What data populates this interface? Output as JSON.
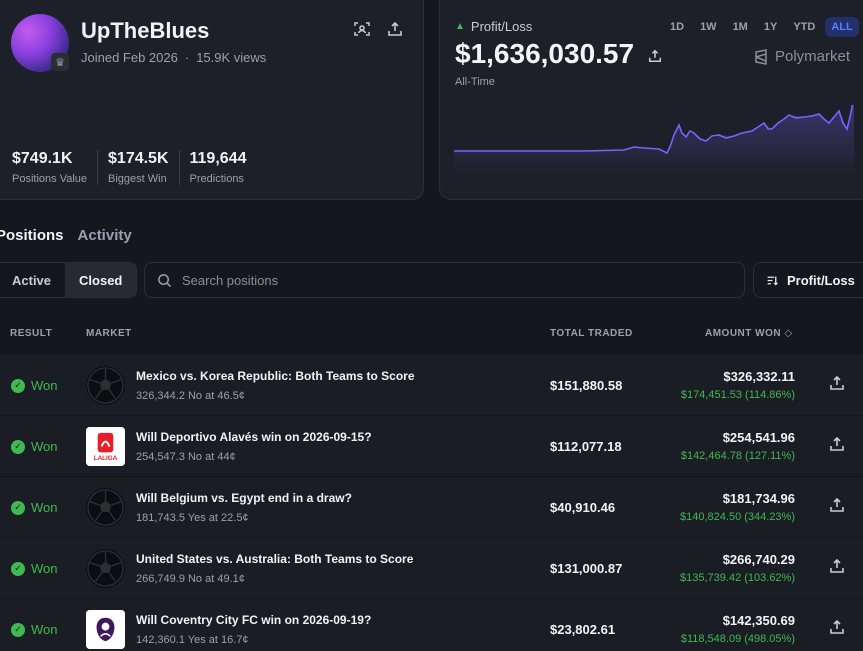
{
  "profile": {
    "username": "UpTheBlues",
    "joined": "Joined Feb 2026",
    "views": "15.9K views",
    "stats": [
      {
        "value": "$749.1K",
        "label": "Positions Value"
      },
      {
        "value": "$174.5K",
        "label": "Biggest Win"
      },
      {
        "value": "119,644",
        "label": "Predictions"
      }
    ]
  },
  "pnl": {
    "label": "Profit/Loss",
    "value": "$1,636,030.57",
    "period": "All-Time",
    "ranges": [
      "1D",
      "1W",
      "1M",
      "1Y",
      "YTD",
      "ALL"
    ],
    "active_range": "ALL",
    "brand": "Polymarket",
    "line_color": "#7b61ff"
  },
  "tabs": [
    "Positions",
    "Activity"
  ],
  "filters": {
    "active": "Active",
    "closed": "Closed"
  },
  "search": {
    "placeholder": "Search positions",
    "value": ""
  },
  "sort": {
    "label": "Profit/Loss"
  },
  "columns": {
    "result": "RESULT",
    "market": "MARKET",
    "total_traded": "TOTAL TRADED",
    "amount_won": "AMOUNT WON"
  },
  "rows": [
    {
      "result": "Won",
      "thumb": "soccer-ball",
      "title": "Mexico vs. Korea Republic: Both Teams to Score",
      "sub": "326,344.2 No at 46.5¢",
      "traded": "$151,880.58",
      "won": "$326,332.11",
      "gain": "$174,451.53 (114.86%)"
    },
    {
      "result": "Won",
      "thumb": "laliga-logo",
      "title": "Will Deportivo Alavés win on 2026-09-15?",
      "sub": "254,547.3 No at 44¢",
      "traded": "$112,077.18",
      "won": "$254,541.96",
      "gain": "$142,464.78 (127.11%)",
      "logo_text": "LALIGA"
    },
    {
      "result": "Won",
      "thumb": "soccer-ball",
      "title": "Will Belgium vs. Egypt end in a draw?",
      "sub": "181,743.5 Yes at 22.5¢",
      "traded": "$40,910.46",
      "won": "$181,734.96",
      "gain": "$140,824.50 (344.23%)"
    },
    {
      "result": "Won",
      "thumb": "soccer-ball",
      "title": "United States vs. Australia: Both Teams to Score",
      "sub": "266,749.9 No at 49.1¢",
      "traded": "$131,000.87",
      "won": "$266,740.29",
      "gain": "$135,739.42 (103.62%)"
    },
    {
      "result": "Won",
      "thumb": "premier-league-logo",
      "title": "Will Coventry City FC win on 2026-09-19?",
      "sub": "142,360.1 Yes at 16.7¢",
      "traded": "$23,802.61",
      "won": "$142,350.69",
      "gain": "$118,548.09 (498.05%)"
    }
  ]
}
